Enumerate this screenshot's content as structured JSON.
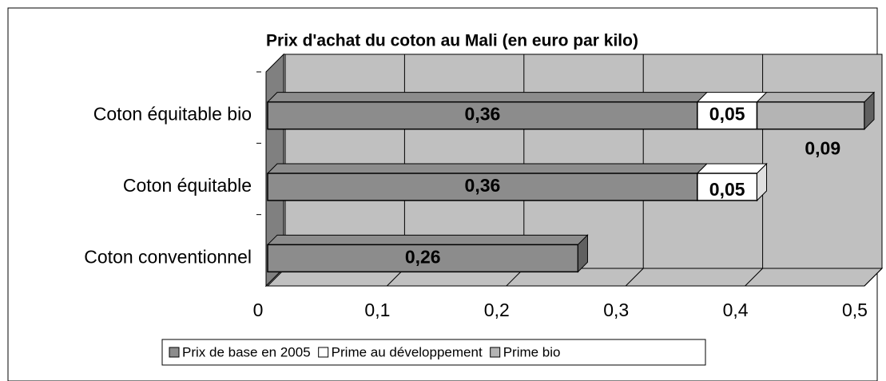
{
  "chart_data": {
    "type": "bar",
    "orientation": "horizontal",
    "stacked": true,
    "title": "Prix d'achat du coton au Mali (en euro par kilo)",
    "categories": [
      "Coton équitable bio",
      "Coton équitable",
      "Coton conventionnel"
    ],
    "series": [
      {
        "name": "Prix de base en 2005",
        "color": "#8c8c8c",
        "values": [
          0.36,
          0.36,
          0.26
        ],
        "value_labels": [
          "0,36",
          "0,36",
          "0,26"
        ]
      },
      {
        "name": "Prime au développement",
        "color": "#ffffff",
        "values": [
          0.05,
          0.05,
          null
        ],
        "value_labels": [
          "0,05",
          "0,05",
          null
        ]
      },
      {
        "name": "Prime bio",
        "color": "#b4b4b4",
        "values": [
          0.09,
          null,
          null
        ],
        "value_labels": [
          "0,09",
          null,
          null
        ]
      }
    ],
    "xlim": [
      0,
      0.5
    ],
    "xticks": [
      0,
      {
        "value": 0.1,
        "label": "0,1"
      },
      {
        "value": 0.2,
        "label": "0,2"
      },
      {
        "value": 0.3,
        "label": "0,3"
      },
      {
        "value": 0.4,
        "label": "0,4"
      },
      {
        "value": 0.5,
        "label": "0,5"
      }
    ],
    "grid": true,
    "legend": "bottom"
  }
}
